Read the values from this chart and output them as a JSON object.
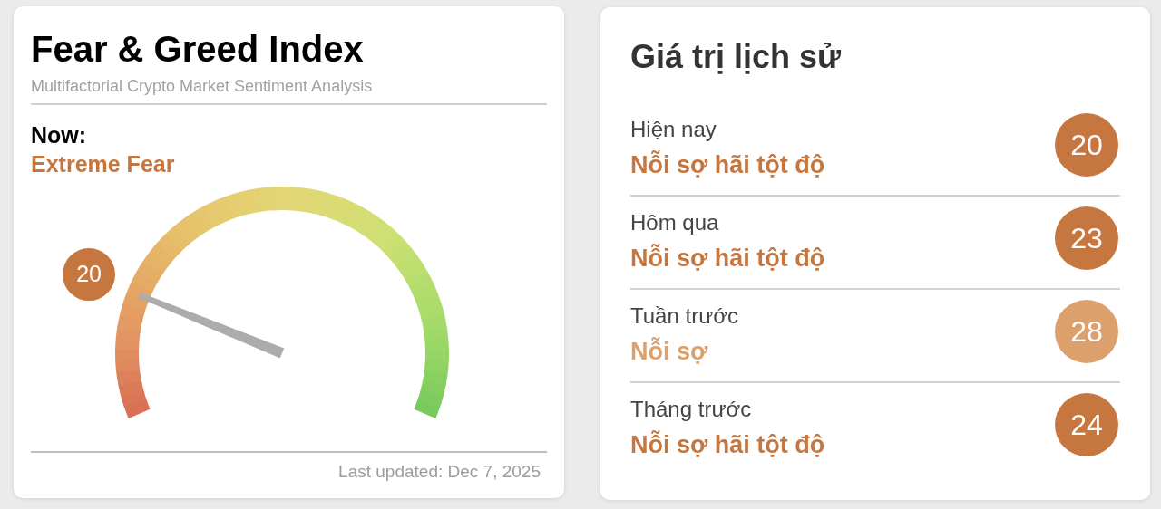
{
  "chart_data": [
    {
      "type": "other",
      "title": "Fear & Greed Index",
      "subtitle": "Multifactorial Crypto Market Sentiment Analysis",
      "values": [
        20
      ],
      "color": "#c6763f",
      "data_labels": true,
      "annotations": [
        "Now:",
        "Extreme Fear",
        "Last updated: Dec 7, 2025"
      ]
    },
    {
      "type": "other",
      "title": "Giá trị lịch sử",
      "categories": [
        "Hiện nay",
        "Hôm qua",
        "Tuần trước",
        "Tháng trước"
      ],
      "series": [
        {
          "color": "#c6763f",
          "values": [
            20,
            23,
            null,
            24
          ]
        },
        {
          "color": "#dca06c",
          "values": [
            null,
            null,
            28,
            null
          ]
        }
      ],
      "data_labels": true,
      "annotations": [
        "Nỗi sợ hãi tột độ",
        "Nỗi sợ hãi tột độ",
        "Nỗi sợ",
        "Nỗi sợ hãi tột độ"
      ]
    }
  ]
}
